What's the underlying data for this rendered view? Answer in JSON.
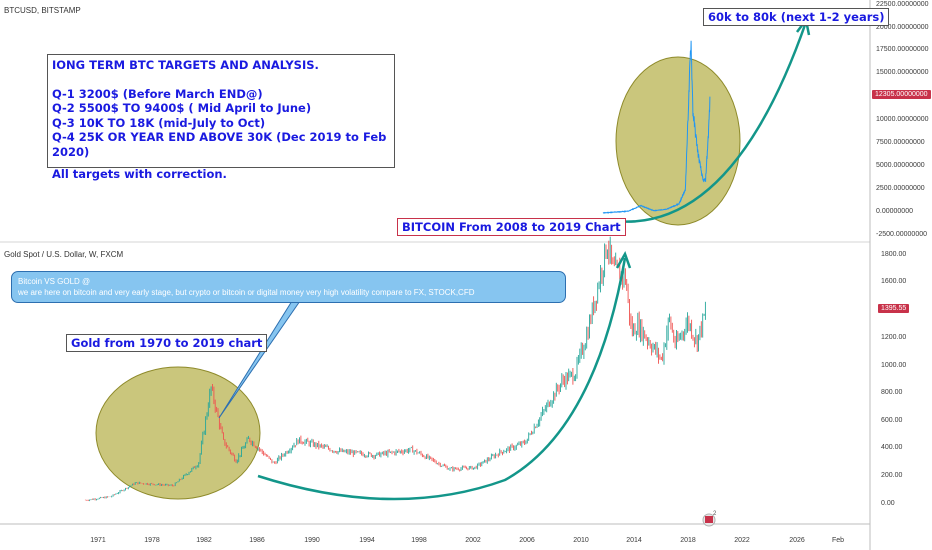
{
  "top_panel": {
    "symbol": "BTCUSD, BITSTAMP",
    "price_tag": "12305.00000000",
    "y_ticks": [
      "22500.00000000",
      "20000.00000000",
      "17500.00000000",
      "15000.00000000",
      "12305.00000000",
      "10000.00000000",
      "7500.00000000",
      "5000.00000000",
      "2500.00000000",
      "0.00000000",
      "-2500.00000000"
    ]
  },
  "bottom_panel": {
    "symbol": "Gold Spot / U.S. Dollar, W, FXCM",
    "price_tag": "1395.55",
    "y_ticks": [
      "1800.00",
      "1600.00",
      "1395.55",
      "1200.00",
      "1000.00",
      "800.00",
      "600.00",
      "400.00",
      "200.00",
      "0.00"
    ],
    "x_ticks": [
      "1971",
      "1978",
      "1982",
      "1986",
      "1990",
      "1994",
      "1998",
      "2002",
      "2006",
      "2010",
      "2014",
      "2018",
      "2022",
      "2026",
      "Feb"
    ]
  },
  "annotations": {
    "targets_title": "IONG TERM BTC TARGETS AND ANALYSIS.",
    "targets_lines": [
      "Q-1 3200$ (Before March END@)",
      "Q-2 5500$ TO 9400$ ( Mid April to June)",
      "Q-3 10K TO 18K (mid-July to Oct)",
      "Q-4 25K OR YEAR END ABOVE 30K (Dec 2019 to Feb 2020)"
    ],
    "targets_note": "All targets with correction.",
    "btc_projection": "60k to 80k (next 1-2 years)",
    "btc_chart_label": "BITCOIN From 2008 to 2019 Chart",
    "gold_chart_label": "Gold from 1970 to 2019 chart",
    "callout_line1": "Bitcoin VS GOLD @",
    "callout_line2": "we are here on bitcoin and very early stage, but crypto or bitcoin or digital money very high volatility  compare to FX, STOCK,CFD"
  },
  "colors": {
    "candle_up": "#26a69a",
    "candle_down": "#ef5350",
    "btc_line": "#2196f3",
    "arrow": "#13968a",
    "circle_fill": "#b5b04a",
    "price_tag": "#c8324a",
    "text_blue": "#1a1ae0"
  },
  "chart_data": [
    {
      "type": "line",
      "title": "BTCUSD, BITSTAMP",
      "x": [
        2011,
        2013,
        2014,
        2015,
        2016,
        2017,
        2017.5,
        2017.95,
        2018.1,
        2018.5,
        2018.9,
        2019.1,
        2019.3,
        2019.45
      ],
      "series": [
        {
          "values": [
            5,
            200,
            800,
            250,
            400,
            1000,
            2500,
            19000,
            11000,
            6500,
            3500,
            3600,
            8000,
            12305
          ]
        }
      ],
      "ylim": [
        -2500,
        22500
      ]
    },
    {
      "type": "line",
      "title": "Gold Spot / U.S. Dollar, W, FXCM",
      "x": [
        1970,
        1972,
        1974,
        1977,
        1979,
        1980,
        1981,
        1982,
        1983,
        1985,
        1987,
        1990,
        1993,
        1996,
        1999,
        2001,
        2003,
        2005,
        2006,
        2008,
        2009,
        2010,
        2011.6,
        2012,
        2013,
        2013.5,
        2014,
        2015.9,
        2016.5,
        2017,
        2018,
        2018.7,
        2019.4
      ],
      "series": [
        {
          "values": [
            35,
            60,
            160,
            140,
            300,
            850,
            460,
            320,
            480,
            300,
            470,
            390,
            360,
            400,
            260,
            270,
            380,
            450,
            600,
            900,
            950,
            1250,
            1900,
            1700,
            1650,
            1250,
            1300,
            1050,
            1350,
            1150,
            1330,
            1180,
            1395
          ]
        }
      ],
      "ylim": [
        -100,
        1850
      ]
    }
  ]
}
